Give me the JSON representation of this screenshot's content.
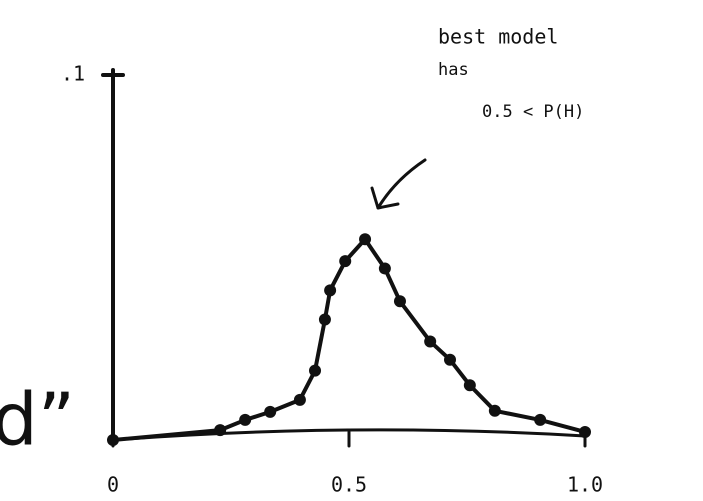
{
  "chart_data": {
    "type": "line",
    "annotation": [
      "best model",
      "has",
      "0.5 < P(H)"
    ],
    "side_text": "d”",
    "x": [
      0,
      0.227,
      0.28,
      0.333,
      0.396,
      0.428,
      0.449,
      0.46,
      0.492,
      0.534,
      0.576,
      0.608,
      0.672,
      0.714,
      0.756,
      0.809,
      0.905,
      1.0
    ],
    "values": [
      0,
      0.0027,
      0.0055,
      0.0077,
      0.011,
      0.019,
      0.033,
      0.041,
      0.049,
      0.055,
      0.047,
      0.038,
      0.027,
      0.022,
      0.015,
      0.008,
      0.0055,
      0.0022
    ],
    "color": "#111111",
    "xlim": [
      0,
      1
    ],
    "ylim": [
      0,
      0.1
    ],
    "xticks": [
      0,
      0.5,
      {
        "value": 1,
        "label": "1.0"
      }
    ],
    "yticks": [
      {
        "value": 0.1,
        "label": ".1"
      }
    ]
  }
}
